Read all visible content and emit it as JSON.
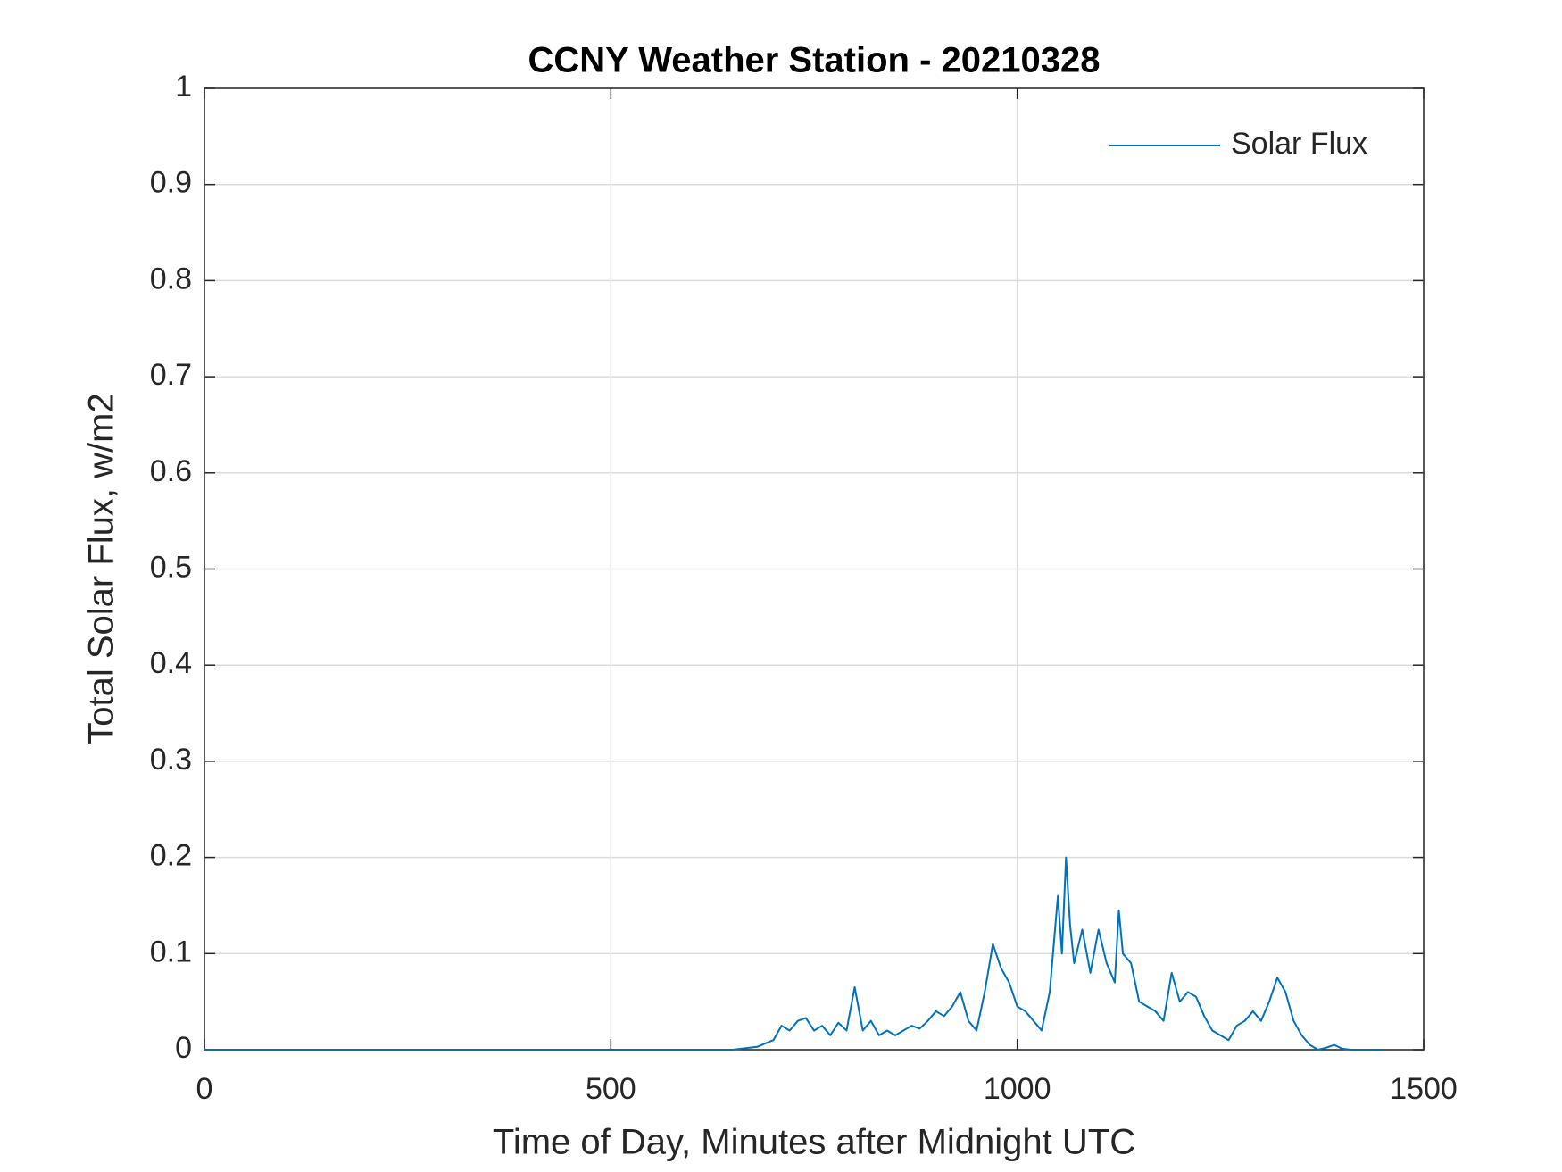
{
  "chart_data": {
    "type": "line",
    "title": "CCNY Weather Station - 20210328",
    "x_label": "Time of Day, Minutes after Midnight UTC",
    "y_label": "Total Solar Flux, w/m2",
    "x": [
      0,
      650,
      680,
      700,
      710,
      720,
      730,
      740,
      750,
      760,
      770,
      780,
      790,
      800,
      810,
      820,
      830,
      840,
      850,
      860,
      870,
      880,
      890,
      900,
      910,
      920,
      930,
      940,
      950,
      960,
      970,
      980,
      990,
      1000,
      1010,
      1020,
      1030,
      1040,
      1050,
      1055,
      1060,
      1065,
      1070,
      1080,
      1090,
      1100,
      1110,
      1120,
      1125,
      1130,
      1140,
      1150,
      1160,
      1170,
      1180,
      1190,
      1200,
      1210,
      1220,
      1230,
      1240,
      1250,
      1260,
      1270,
      1280,
      1290,
      1300,
      1310,
      1320,
      1330,
      1340,
      1350,
      1360,
      1370,
      1380,
      1390,
      1400,
      1410,
      1420,
      1450
    ],
    "series": [
      {
        "name": "Solar Flux",
        "color": "#0072bd",
        "values": [
          0,
          0,
          0.003,
          0.01,
          0.025,
          0.02,
          0.03,
          0.033,
          0.02,
          0.025,
          0.015,
          0.028,
          0.02,
          0.065,
          0.02,
          0.03,
          0.015,
          0.02,
          0.015,
          0.02,
          0.025,
          0.022,
          0.03,
          0.04,
          0.035,
          0.045,
          0.06,
          0.03,
          0.02,
          0.06,
          0.11,
          0.085,
          0.07,
          0.045,
          0.04,
          0.03,
          0.02,
          0.06,
          0.16,
          0.1,
          0.2,
          0.13,
          0.09,
          0.125,
          0.08,
          0.125,
          0.09,
          0.07,
          0.145,
          0.1,
          0.09,
          0.05,
          0.045,
          0.04,
          0.03,
          0.08,
          0.05,
          0.06,
          0.055,
          0.035,
          0.02,
          0.015,
          0.01,
          0.025,
          0.03,
          0.04,
          0.03,
          0.05,
          0.075,
          0.06,
          0.03,
          0.015,
          0.005,
          0,
          0.002,
          0.005,
          0.001,
          0,
          0,
          0
        ]
      }
    ],
    "xlim": [
      0,
      1500
    ],
    "xticks": [
      0,
      500,
      1000,
      1500
    ],
    "ylim": [
      0,
      1
    ],
    "yticks": [
      0,
      0.1,
      0.2,
      0.3,
      0.4,
      0.5,
      0.6,
      0.7,
      0.8,
      0.9,
      1
    ],
    "grid": true,
    "legend": "upper-right"
  }
}
